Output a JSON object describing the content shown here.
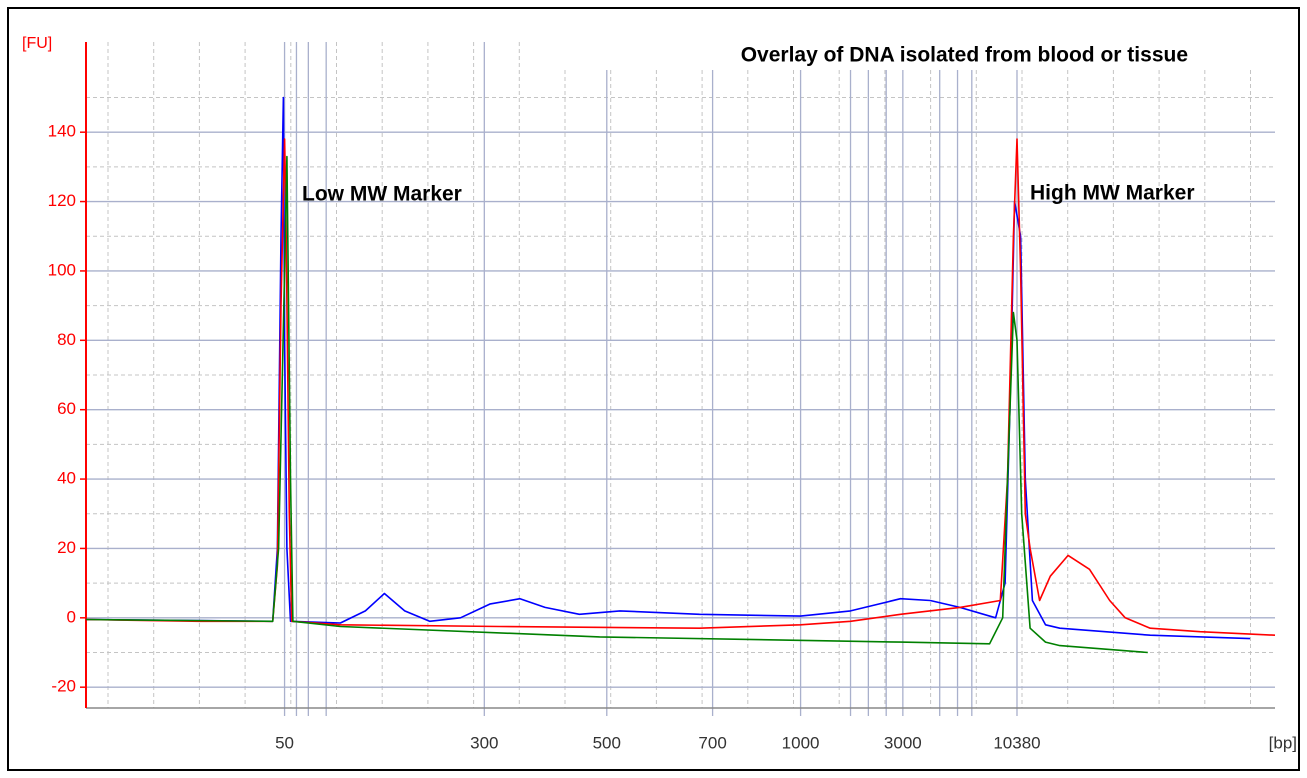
{
  "chart_data": {
    "type": "line",
    "title": "Overlay of DNA isolated from blood or tissue",
    "y_label": "[FU]",
    "x_label": "[bp]",
    "annotations": [
      "Low MW Marker",
      "High MW Marker"
    ],
    "xlim": [
      0,
      100
    ],
    "ylim": [
      -26,
      166
    ],
    "yticks": [
      -20,
      0,
      20,
      40,
      60,
      80,
      100,
      120,
      140
    ],
    "xticks": [
      {
        "value": 16.7,
        "label": "50"
      },
      {
        "value": 33.5,
        "label": "300"
      },
      {
        "value": 43.8,
        "label": "500"
      },
      {
        "value": 52.7,
        "label": "700"
      },
      {
        "value": 60.1,
        "label": "1000"
      },
      {
        "value": 68.7,
        "label": "3000"
      },
      {
        "value": 78.3,
        "label": "10380"
      }
    ],
    "ladder_lines": [
      17.7,
      18.7,
      20.2,
      64.3,
      65.8,
      67.3,
      71.8,
      73.3,
      74.5
    ],
    "grid": true,
    "series": [
      {
        "color": "#0000ff",
        "x": [
          0,
          9.6,
          15.7,
          16.1,
          16.4,
          16.6,
          16.7,
          16.9,
          17.2,
          21.4,
          23.5,
          25.1,
          26.8,
          28.9,
          31.5,
          34.0,
          36.5,
          38.6,
          41.5,
          44.9,
          51.6,
          60.1,
          64.3,
          68.5,
          71.0,
          73.5,
          76.5,
          77.3,
          77.7,
          78.1,
          78.6,
          79.0,
          79.6,
          80.7,
          81.9,
          89.5,
          97.9
        ],
        "values": [
          -0.5,
          -0.8,
          -1,
          20,
          110,
          150,
          80,
          20,
          -1,
          -1.5,
          2,
          7,
          2,
          -1,
          0,
          4,
          5.5,
          3,
          1,
          2,
          1,
          0.5,
          2,
          5.5,
          5,
          3,
          0,
          10,
          60,
          120,
          110,
          40,
          5,
          -2,
          -3,
          -5,
          -6
        ]
      },
      {
        "color": "#ff0000",
        "x": [
          0,
          9.6,
          15.7,
          16.1,
          16.4,
          16.7,
          16.8,
          17.1,
          17.3,
          21.4,
          34.8,
          51.6,
          60.1,
          64.3,
          68.5,
          73.5,
          76.9,
          77.5,
          78.0,
          78.3,
          78.6,
          79.0,
          79.4,
          80.2,
          81.1,
          82.6,
          84.4,
          86.1,
          87.4,
          89.5,
          93.7,
          100
        ],
        "values": [
          -0.5,
          -1,
          -1,
          15,
          90,
          138,
          120,
          30,
          -1,
          -2,
          -2.5,
          -3,
          -2,
          -1,
          1,
          3,
          5,
          40,
          110,
          138,
          100,
          30,
          20,
          5,
          12,
          18,
          14,
          5,
          0,
          -3,
          -4,
          -5
        ]
      },
      {
        "color": "#008000",
        "x": [
          0,
          15.7,
          16.2,
          16.7,
          16.9,
          17.2,
          17.4,
          21.4,
          43.2,
          68.5,
          76.0,
          77.1,
          77.5,
          78.0,
          78.3,
          78.7,
          79.4,
          80.7,
          81.9,
          89.3
        ],
        "values": [
          -0.5,
          -1,
          20,
          100,
          133,
          40,
          -1,
          -2.5,
          -5.5,
          -7,
          -7.5,
          0,
          40,
          88,
          80,
          30,
          -3,
          -7,
          -8,
          -10
        ]
      }
    ]
  }
}
